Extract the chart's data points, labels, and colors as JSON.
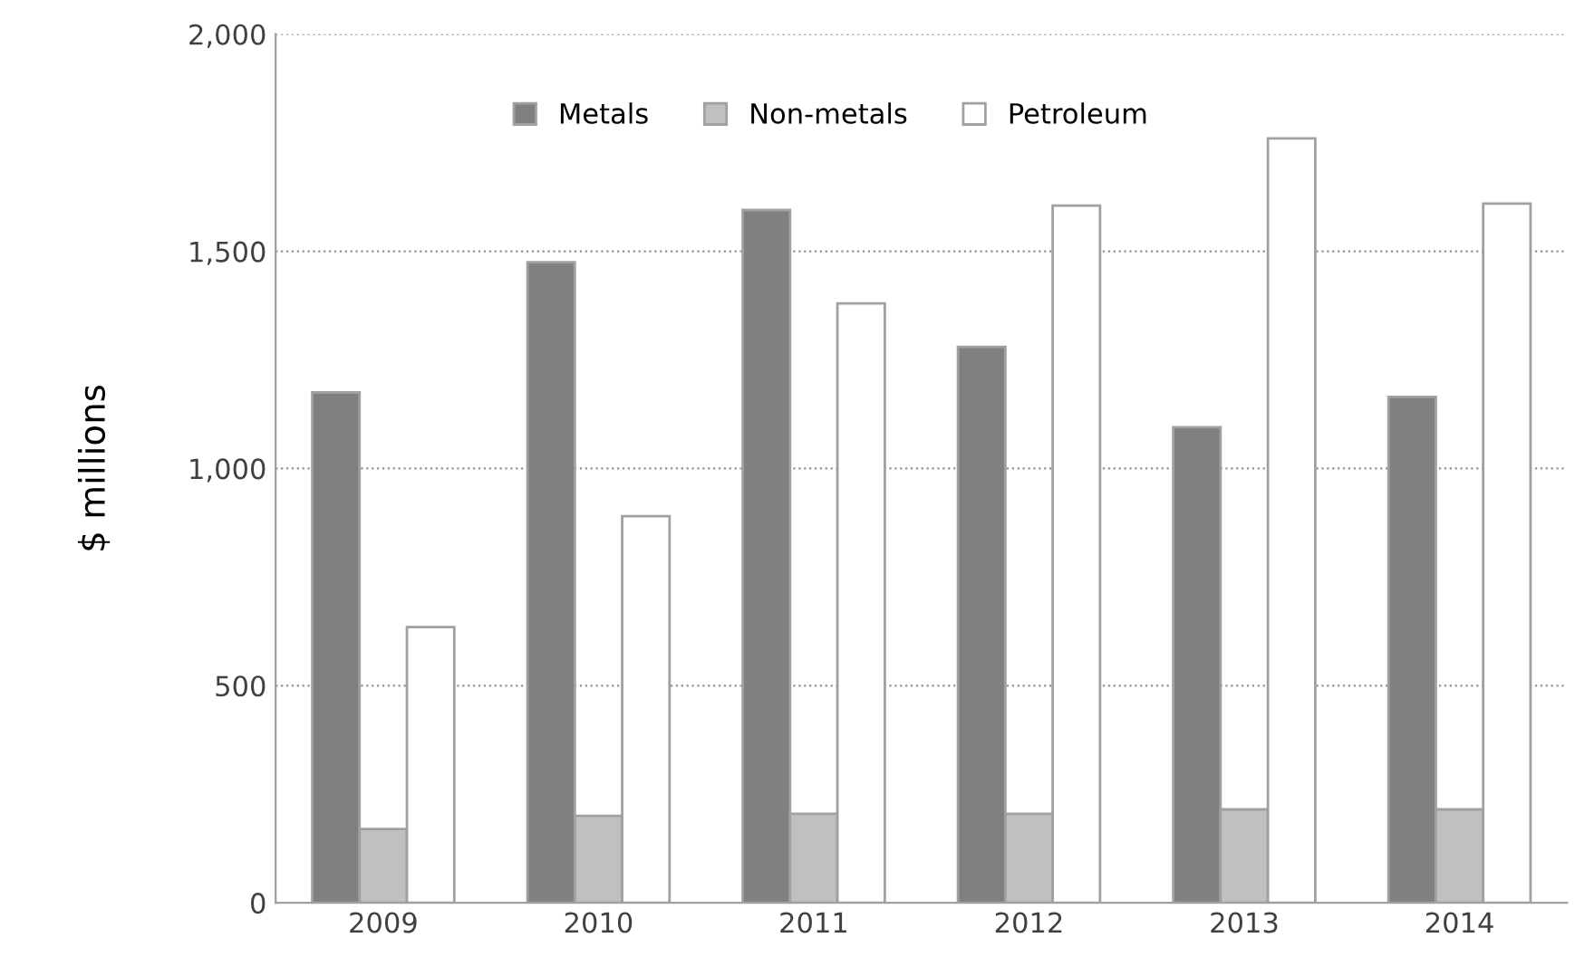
{
  "chart_data": {
    "type": "bar",
    "ylabel": "$ millions",
    "categories": [
      "2009",
      "2010",
      "2011",
      "2012",
      "2013",
      "2014"
    ],
    "series": [
      {
        "name": "Metals",
        "color": "#808080",
        "values": [
          1175,
          1475,
          1595,
          1280,
          1095,
          1165
        ]
      },
      {
        "name": "Non-metals",
        "color": "#c0c0c0",
        "values": [
          170,
          200,
          205,
          205,
          215,
          215
        ]
      },
      {
        "name": "Petroleum",
        "color": "#ffffff",
        "values": [
          635,
          890,
          1380,
          1605,
          1760,
          1610
        ]
      }
    ],
    "ylim": [
      0,
      2000
    ],
    "yticks": [
      {
        "value": 0,
        "label": "0"
      },
      {
        "value": 500,
        "label": "500"
      },
      {
        "value": 1000,
        "label": "1,000"
      },
      {
        "value": 1500,
        "label": "1,500"
      },
      {
        "value": 2000,
        "label": "2,000"
      }
    ],
    "grid": "y",
    "legend": "top"
  }
}
